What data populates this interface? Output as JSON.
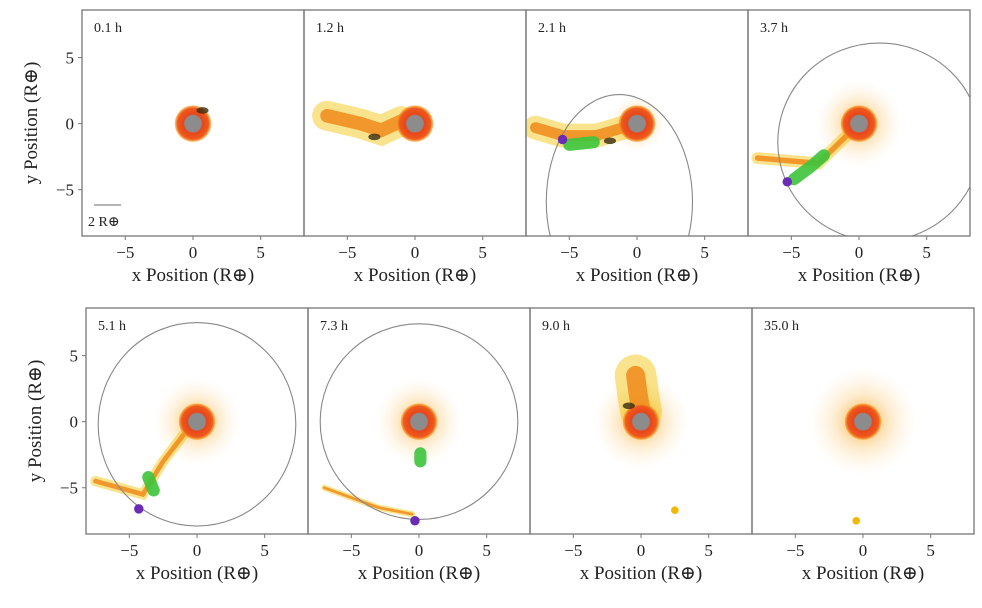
{
  "chart_data": {
    "type": "scatter",
    "layout": "2 rows x 4 panels",
    "xlabel": "x Position (R⊕)",
    "ylabel": "y Position (R⊕)",
    "xlim": [
      -8.2,
      8.2
    ],
    "ylim": [
      -8.5,
      8.6
    ],
    "xticks": [
      "−5",
      "0",
      "5"
    ],
    "yticks": [
      "5",
      "0",
      "−5"
    ],
    "xtick_values": [
      -5,
      0,
      5
    ],
    "ytick_values": [
      5,
      0,
      -5
    ],
    "grid": false,
    "scale_bar": {
      "label": "2 R⊕",
      "length": 2
    },
    "colors": {
      "core": "#8c8c8c",
      "mantle": "#e8451a",
      "halo": "#f7a21b",
      "debris_yellow": "#f2c200",
      "clump_green": "#3cc43c",
      "moonlet_purple": "#6a2bb5",
      "orbit": "#888888",
      "dark": "#3a2a10"
    },
    "panels": [
      {
        "label": "0.1 h",
        "planet": [
          0,
          0
        ],
        "halo": 0,
        "stream": [
          [
            0.7,
            0.9
          ]
        ],
        "stream_width": 0.9,
        "dark": [
          0.7,
          1.0
        ],
        "green": null,
        "purple": null,
        "orbit": null,
        "dot": null
      },
      {
        "label": "1.2 h",
        "planet": [
          0,
          0
        ],
        "halo": 0,
        "stream": [
          [
            -6.5,
            0.6
          ],
          [
            -4,
            0
          ],
          [
            -2.5,
            -0.5
          ],
          [
            -1,
            0.2
          ]
        ],
        "stream_width": 1.0,
        "dark": [
          -3,
          -1.0
        ],
        "green": null,
        "purple": null,
        "orbit": null,
        "dot": null
      },
      {
        "label": "2.1 h",
        "planet": [
          0,
          0
        ],
        "halo": 0.3,
        "stream": [
          [
            -7.5,
            -0.3
          ],
          [
            -5.5,
            -0.9
          ],
          [
            -3,
            -0.9
          ],
          [
            -1,
            -0.3
          ]
        ],
        "stream_width": 0.8,
        "dark": [
          -2,
          -1.3
        ],
        "green": [
          [
            -5,
            -1.6
          ],
          [
            -3.2,
            -1.4
          ]
        ],
        "purple": [
          -5.5,
          -1.2
        ],
        "orbit": {
          "cx": -1.3,
          "cy": -5.9,
          "rx": 5.4,
          "ry": 8.1
        },
        "dot": null
      },
      {
        "label": "3.7 h",
        "planet": [
          0,
          0
        ],
        "halo": 1,
        "stream": [
          [
            -7.5,
            -2.6
          ],
          [
            -3,
            -3
          ],
          [
            -1.5,
            -1.5
          ],
          [
            -0.5,
            -0.5
          ]
        ],
        "stream_width": 0.4,
        "dark": null,
        "green": [
          [
            -4.8,
            -4.2
          ],
          [
            -3.5,
            -3.2
          ],
          [
            -2.6,
            -2.4
          ]
        ],
        "purple": [
          -5.3,
          -4.4
        ],
        "orbit": {
          "cx": 1.5,
          "cy": -1.4,
          "rx": 7.5,
          "ry": 7.5
        },
        "dot": null
      },
      {
        "label": "5.1 h",
        "planet": [
          0,
          0
        ],
        "halo": 1,
        "stream": [
          [
            -7.5,
            -4.5
          ],
          [
            -4,
            -5.5
          ],
          [
            -2.5,
            -3
          ],
          [
            -1,
            -1
          ]
        ],
        "stream_width": 0.35,
        "dark": null,
        "green": [
          [
            -3.6,
            -4.2
          ],
          [
            -3.2,
            -5.2
          ]
        ],
        "purple": [
          -4.3,
          -6.6
        ],
        "orbit": {
          "cx": 0,
          "cy": -0.2,
          "rx": 7.3,
          "ry": 7.7
        },
        "dot": null
      },
      {
        "label": "7.3 h",
        "planet": [
          0,
          0
        ],
        "halo": 1,
        "stream": [
          [
            -7,
            -5
          ],
          [
            -3,
            -6.5
          ],
          [
            -0.5,
            -7
          ]
        ],
        "stream_width": 0.2,
        "dark": null,
        "green": [
          [
            0.1,
            -2.4
          ],
          [
            0.1,
            -3
          ]
        ],
        "purple": [
          -0.3,
          -7.5
        ],
        "orbit": {
          "cx": 0,
          "cy": 0,
          "rx": 7.3,
          "ry": 7.4
        },
        "dot": null
      },
      {
        "label": "9.0 h",
        "planet": [
          0,
          0
        ],
        "halo": 1.2,
        "stream": [
          [
            -0.4,
            3.5
          ],
          [
            -0.2,
            2
          ],
          [
            0,
            0.8
          ]
        ],
        "stream_width": 1.4,
        "dark": [
          -0.9,
          1.2
        ],
        "green": null,
        "purple": null,
        "orbit": null,
        "dot": [
          2.5,
          -6.7
        ]
      },
      {
        "label": "35.0 h",
        "planet": [
          0,
          0
        ],
        "halo": 1.5,
        "stream": [],
        "stream_width": 0,
        "dark": null,
        "green": null,
        "purple": null,
        "orbit": null,
        "dot": [
          -0.5,
          -7.5
        ]
      }
    ]
  }
}
